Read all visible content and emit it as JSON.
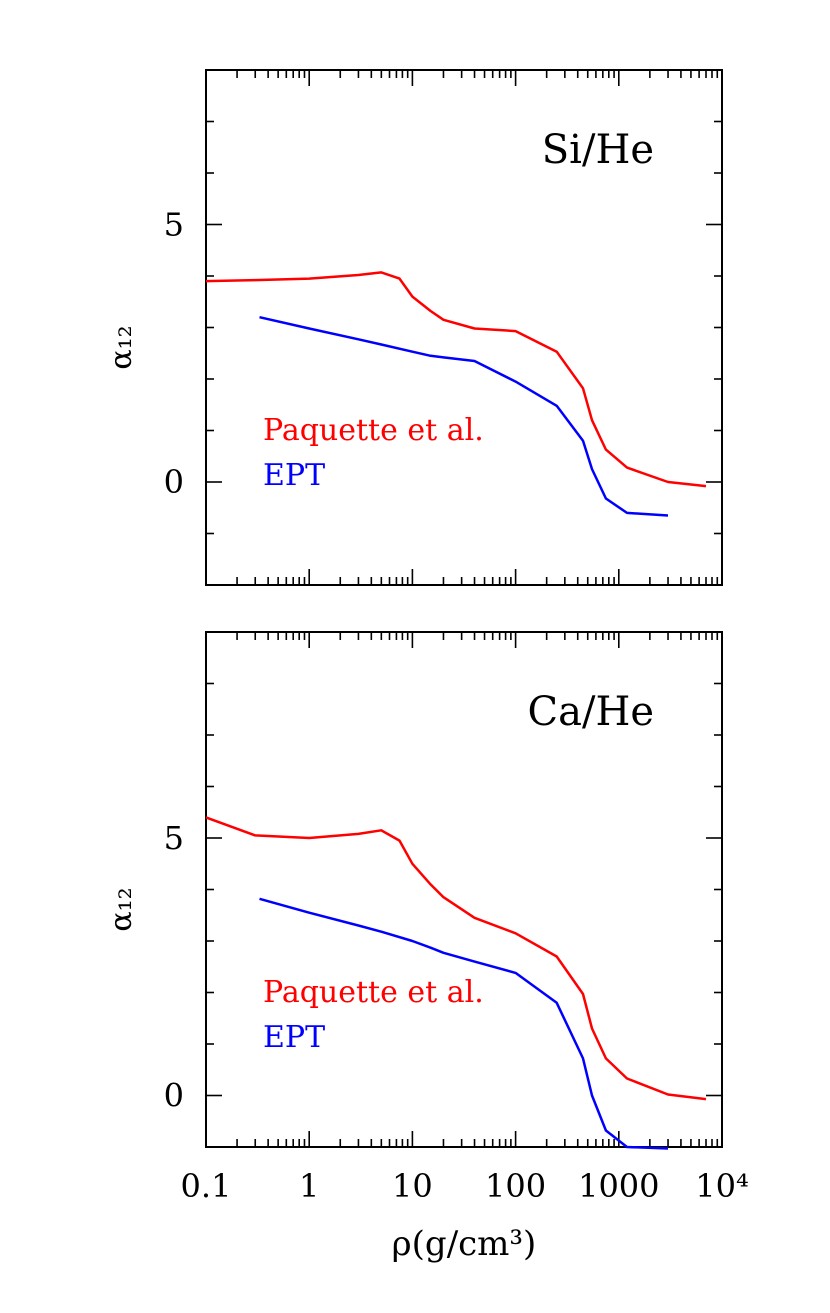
{
  "chart_data": [
    {
      "type": "line",
      "annotation": "Si/He",
      "ylabel": "α₁₂",
      "xscale": "log",
      "xlim": [
        0.1,
        10000
      ],
      "ylim": [
        -2,
        8
      ],
      "yticks_labeled": [
        0,
        5
      ],
      "legend_placement": "lower-left",
      "series": [
        {
          "name": "Paquette et al.",
          "color": "#ff0000",
          "x": [
            0.1,
            0.3,
            1,
            3,
            5,
            7.5,
            10,
            15,
            20,
            40,
            100,
            250,
            450,
            550,
            750,
            1200,
            3000,
            7000
          ],
          "y": [
            3.9,
            3.92,
            3.95,
            4.02,
            4.07,
            3.95,
            3.6,
            3.32,
            3.15,
            2.98,
            2.93,
            2.53,
            1.82,
            1.2,
            0.63,
            0.28,
            0.0,
            -0.08
          ]
        },
        {
          "name": "EPT",
          "color": "#0000ff",
          "x": [
            0.33,
            1,
            3,
            5,
            10,
            15,
            20,
            40,
            100,
            250,
            450,
            550,
            750,
            1200,
            3000
          ],
          "y": [
            3.2,
            2.98,
            2.77,
            2.67,
            2.53,
            2.45,
            2.42,
            2.35,
            1.95,
            1.48,
            0.8,
            0.25,
            -0.32,
            -0.6,
            -0.65
          ]
        }
      ]
    },
    {
      "type": "line",
      "annotation": "Ca/He",
      "ylabel": "α₁₂",
      "xlabel": "ρ(g/cm³)",
      "xscale": "log",
      "xlim": [
        0.1,
        10000
      ],
      "ylim": [
        -1,
        9
      ],
      "yticks_labeled": [
        0,
        5
      ],
      "xtick_labels": [
        "0.1",
        "1",
        "10",
        "100",
        "1000",
        "10⁴"
      ],
      "legend_placement": "lower-left",
      "series": [
        {
          "name": "Paquette et al.",
          "color": "#ff0000",
          "x": [
            0.1,
            0.3,
            1,
            3,
            5,
            7.5,
            10,
            15,
            20,
            40,
            100,
            250,
            450,
            550,
            750,
            1200,
            3000,
            7000
          ],
          "y": [
            5.4,
            5.05,
            5.0,
            5.08,
            5.15,
            4.95,
            4.5,
            4.1,
            3.85,
            3.45,
            3.15,
            2.7,
            1.97,
            1.3,
            0.72,
            0.33,
            0.02,
            -0.07
          ]
        },
        {
          "name": "EPT",
          "color": "#0000ff",
          "x": [
            0.33,
            1,
            3,
            5,
            10,
            15,
            20,
            40,
            100,
            250,
            450,
            550,
            750,
            1200,
            3000
          ],
          "y": [
            3.82,
            3.55,
            3.3,
            3.18,
            3.0,
            2.87,
            2.77,
            2.6,
            2.38,
            1.8,
            0.72,
            0.0,
            -0.68,
            -1.0,
            -1.03
          ]
        }
      ]
    }
  ]
}
